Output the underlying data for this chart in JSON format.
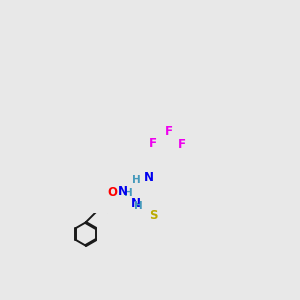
{
  "background_color": "#e8e8e8",
  "bond_color": "#1a1a1a",
  "atom_colors": {
    "O": "#ff0000",
    "N": "#0000ee",
    "S": "#bbaa00",
    "F": "#ee00ee",
    "C": "#1a1a1a",
    "H": "#4499bb"
  },
  "figsize": [
    3.0,
    3.0
  ],
  "dpi": 100
}
